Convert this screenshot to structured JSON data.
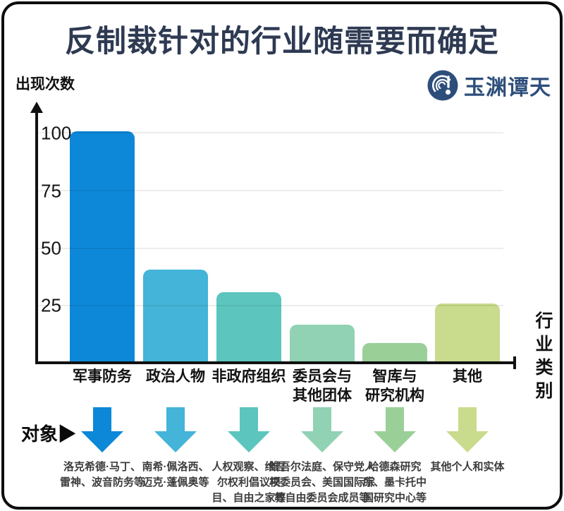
{
  "header": {
    "title": "反制裁针对的行业随需要而确定",
    "logo_text": "玉渊谭天"
  },
  "chart_data": {
    "type": "bar",
    "title": "反制裁针对的行业随需要而确定",
    "ylabel": "出现次数",
    "xlabel": "行业类别",
    "ylim": [
      0,
      100
    ],
    "yticks": [
      100,
      75,
      50,
      25
    ],
    "grid": true,
    "legend_position": "none",
    "categories": [
      "军事防务",
      "政治人物",
      "非政府组织",
      "委员会与\n其他团体",
      "智库与\n研究机构",
      "其他"
    ],
    "values": [
      100,
      40,
      30,
      16,
      8,
      25
    ],
    "bar_colors": [
      "#0d88d8",
      "#44b4d8",
      "#5cc5bd",
      "#91d1b4",
      "#9ad098",
      "#c9db8c"
    ],
    "title_color": "#2e3a52",
    "axis_color": "#111111"
  },
  "targets": {
    "label": "对象▶",
    "items": [
      "洛克希德·马丁、\n雷神、波音防务等",
      "南希·佩洛西、\n迈克·蓬佩奥等",
      "人权观察、维吾\n尔权利倡议项\n目、自由之家等",
      "维吾尔法庭、保守党人\n权委员会、美国国际宗\n教自由委员会成员等",
      "哈德森研究\n所、墨卡托中\n国研究中心等",
      "其他个人和实体"
    ]
  }
}
